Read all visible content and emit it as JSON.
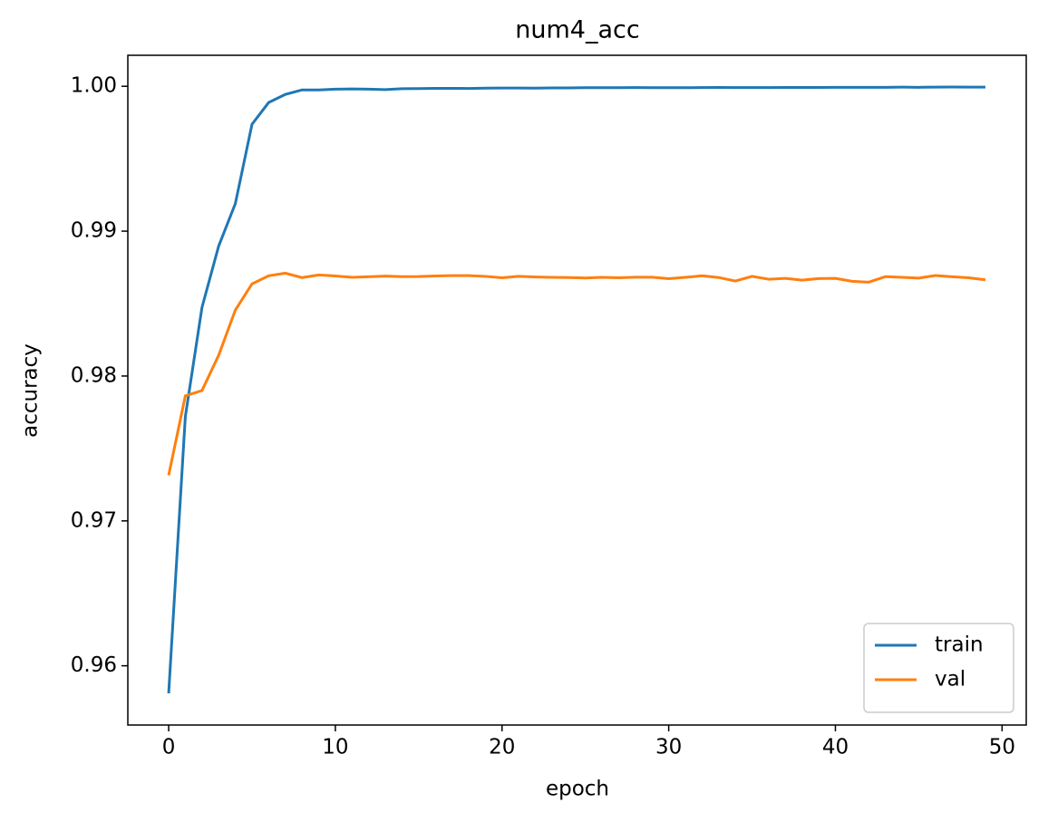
{
  "chart_data": {
    "type": "line",
    "title": "num4_acc",
    "x_label": "epoch",
    "y_label": "accuracy",
    "x": [
      0,
      1,
      2,
      3,
      4,
      5,
      6,
      7,
      8,
      9,
      10,
      11,
      12,
      13,
      14,
      15,
      16,
      17,
      18,
      19,
      20,
      21,
      22,
      23,
      24,
      25,
      26,
      27,
      28,
      29,
      30,
      31,
      32,
      33,
      34,
      35,
      36,
      37,
      38,
      39,
      40,
      41,
      42,
      43,
      44,
      45,
      46,
      47,
      48,
      49
    ],
    "series": [
      {
        "name": "train",
        "color": "#1f77b4",
        "values": [
          0.9581,
          0.9772,
          0.98474,
          0.98897,
          0.9919,
          0.99738,
          0.99888,
          0.99944,
          0.99975,
          0.99975,
          0.9998,
          0.99982,
          0.9998,
          0.99977,
          0.99983,
          0.99984,
          0.99986,
          0.99986,
          0.99985,
          0.99987,
          0.99988,
          0.99988,
          0.99987,
          0.99989,
          0.99989,
          0.9999,
          0.9999,
          0.9999,
          0.99991,
          0.9999,
          0.9999,
          0.9999,
          0.99991,
          0.99992,
          0.99991,
          0.99991,
          0.99991,
          0.99992,
          0.99992,
          0.99992,
          0.99993,
          0.99993,
          0.99993,
          0.99993,
          0.99994,
          0.99993,
          0.99994,
          0.99995,
          0.99994,
          0.99994
        ]
      },
      {
        "name": "val",
        "color": "#ff7f0e",
        "values": [
          0.97315,
          0.97863,
          0.979,
          0.98143,
          0.98455,
          0.98636,
          0.98692,
          0.9871,
          0.98679,
          0.98698,
          0.98691,
          0.98681,
          0.98685,
          0.9869,
          0.98686,
          0.98687,
          0.98691,
          0.98693,
          0.98693,
          0.98688,
          0.98678,
          0.98688,
          0.98684,
          0.98681,
          0.9868,
          0.98677,
          0.98681,
          0.98678,
          0.98682,
          0.98682,
          0.98672,
          0.98681,
          0.98692,
          0.9868,
          0.98656,
          0.98688,
          0.98668,
          0.98674,
          0.98662,
          0.98673,
          0.98674,
          0.98654,
          0.98648,
          0.98686,
          0.98681,
          0.98676,
          0.98694,
          0.98685,
          0.98678,
          0.98664
        ]
      }
    ],
    "xlim": [
      -2.45,
      51.45
    ],
    "ylim": [
      0.95591,
      1.00214
    ],
    "xticks": [
      0,
      10,
      20,
      30,
      40,
      50
    ],
    "yticks": [
      {
        "value": 0.96,
        "label": "0.96"
      },
      {
        "value": 0.97,
        "label": "0.97"
      },
      {
        "value": 0.98,
        "label": "0.98"
      },
      {
        "value": 0.99,
        "label": "0.99"
      },
      {
        "value": 1.0,
        "label": "1.00"
      }
    ],
    "grid": false,
    "legend": "lower right"
  }
}
